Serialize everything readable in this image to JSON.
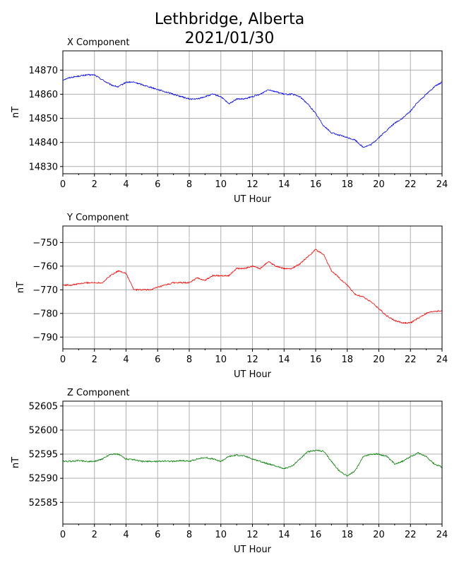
{
  "figure": {
    "title_line1": "Lethbridge, Alberta",
    "title_line2": "2021/01/30"
  },
  "chart_data": [
    {
      "type": "line",
      "panel_title": "X Component",
      "xlabel": "UT Hour",
      "ylabel": "nT",
      "xlim": [
        0,
        24
      ],
      "ylim": [
        14827,
        14878
      ],
      "xticks": [
        0,
        2,
        4,
        6,
        8,
        10,
        12,
        14,
        16,
        18,
        20,
        22,
        24
      ],
      "yticks": [
        14830,
        14840,
        14850,
        14860,
        14870
      ],
      "grid": true,
      "color": "#0000ff",
      "x": [
        0,
        0.5,
        1,
        1.5,
        2,
        2.5,
        3,
        3.5,
        4,
        4.5,
        5,
        5.5,
        6,
        6.5,
        7,
        7.5,
        8,
        8.5,
        9,
        9.5,
        10,
        10.5,
        11,
        11.5,
        12,
        12.5,
        13,
        13.5,
        14,
        14.5,
        15,
        15.5,
        16,
        16.5,
        17,
        17.5,
        18,
        18.5,
        19,
        19.5,
        20,
        20.5,
        21,
        21.5,
        22,
        22.5,
        23,
        23.5,
        24
      ],
      "y": [
        14866,
        14867,
        14867.5,
        14868,
        14868,
        14866,
        14864,
        14863,
        14865,
        14865,
        14864,
        14863,
        14862,
        14861,
        14860,
        14859,
        14858,
        14858,
        14859,
        14860,
        14859,
        14856,
        14858,
        14858,
        14859,
        14860,
        14862,
        14861,
        14860,
        14860,
        14859,
        14856,
        14852,
        14847,
        14844,
        14843,
        14842,
        14841,
        14838,
        14839,
        14842,
        14845,
        14848,
        14850,
        14853,
        14857,
        14860,
        14863,
        14865
      ]
    },
    {
      "type": "line",
      "panel_title": "Y Component",
      "xlabel": "UT Hour",
      "ylabel": "nT",
      "xlim": [
        0,
        24
      ],
      "ylim": [
        -795,
        -743
      ],
      "xticks": [
        0,
        2,
        4,
        6,
        8,
        10,
        12,
        14,
        16,
        18,
        20,
        22,
        24
      ],
      "yticks": [
        -790,
        -780,
        -770,
        -760,
        -750
      ],
      "grid": true,
      "color": "#ff0000",
      "x": [
        0,
        0.5,
        1,
        1.5,
        2,
        2.5,
        3,
        3.5,
        4,
        4.5,
        5,
        5.5,
        6,
        6.5,
        7,
        7.5,
        8,
        8.5,
        9,
        9.5,
        10,
        10.5,
        11,
        11.5,
        12,
        12.5,
        13,
        13.5,
        14,
        14.5,
        15,
        15.5,
        16,
        16.5,
        17,
        17.5,
        18,
        18.5,
        19,
        19.5,
        20,
        20.5,
        21,
        21.5,
        22,
        22.5,
        23,
        23.5,
        24
      ],
      "y": [
        -768,
        -768,
        -767.5,
        -767,
        -767,
        -767,
        -764,
        -762,
        -763,
        -770,
        -770,
        -770,
        -769,
        -768,
        -767,
        -767,
        -767,
        -765,
        -766,
        -764,
        -764,
        -764,
        -761,
        -761,
        -760,
        -761,
        -758,
        -760,
        -761,
        -761,
        -759,
        -756,
        -753,
        -755,
        -762,
        -765,
        -768,
        -772,
        -773,
        -775,
        -778,
        -781,
        -783,
        -784,
        -784,
        -782,
        -780,
        -779,
        -779
      ]
    },
    {
      "type": "line",
      "panel_title": "Z Component",
      "xlabel": "UT Hour",
      "ylabel": "nT",
      "xlim": [
        0,
        24
      ],
      "ylim": [
        52580.5,
        52606
      ],
      "xticks": [
        0,
        2,
        4,
        6,
        8,
        10,
        12,
        14,
        16,
        18,
        20,
        22,
        24
      ],
      "yticks": [
        52585,
        52590,
        52595,
        52600,
        52605
      ],
      "grid": true,
      "color": "#008000",
      "x": [
        0,
        0.5,
        1,
        1.5,
        2,
        2.5,
        3,
        3.5,
        4,
        4.5,
        5,
        5.5,
        6,
        6.5,
        7,
        7.5,
        8,
        8.5,
        9,
        9.5,
        10,
        10.5,
        11,
        11.5,
        12,
        12.5,
        13,
        13.5,
        14,
        14.5,
        15,
        15.5,
        16,
        16.5,
        17,
        17.5,
        18,
        18.5,
        19,
        19.5,
        20,
        20.5,
        21,
        21.5,
        22,
        22.5,
        23,
        23.5,
        24
      ],
      "y": [
        52593.5,
        52593.5,
        52593.7,
        52593.5,
        52593.5,
        52594,
        52595,
        52595,
        52594,
        52593.8,
        52593.5,
        52593.5,
        52593.5,
        52593.6,
        52593.5,
        52593.7,
        52593.5,
        52594,
        52594.3,
        52594,
        52593.5,
        52594.5,
        52594.8,
        52594.6,
        52594,
        52593.5,
        52593,
        52592.5,
        52592,
        52592.5,
        52594,
        52595.5,
        52595.8,
        52595.6,
        52593.5,
        52591.5,
        52590.5,
        52591.5,
        52594.5,
        52595,
        52595,
        52594.5,
        52593,
        52593.5,
        52594.5,
        52595.3,
        52594.5,
        52593,
        52592.3
      ]
    }
  ]
}
